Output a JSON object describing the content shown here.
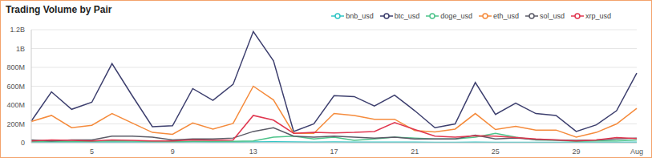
{
  "chart_data": {
    "type": "line",
    "title": "Trading Volume by Pair",
    "categories": [
      null,
      null,
      null,
      "5",
      null,
      null,
      null,
      "9",
      null,
      null,
      null,
      "13",
      null,
      null,
      null,
      "17",
      null,
      null,
      null,
      "21",
      null,
      null,
      null,
      "25",
      null,
      null,
      null,
      "29",
      null,
      null,
      "Aug"
    ],
    "series": [
      {
        "name": "bnb_usd",
        "color": "#2ec4c4",
        "values": [
          5000000,
          6000000,
          5000000,
          6000000,
          7000000,
          6000000,
          5000000,
          5000000,
          8000000,
          7000000,
          6000000,
          8000000,
          10000000,
          8000000,
          7000000,
          8000000,
          7000000,
          6000000,
          7000000,
          6000000,
          5000000,
          5000000,
          6000000,
          5000000,
          5000000,
          5000000,
          4000000,
          4000000,
          4000000,
          5000000,
          6000000
        ]
      },
      {
        "name": "btc_usd",
        "color": "#3d3f6e",
        "values": [
          230000000,
          540000000,
          355000000,
          430000000,
          840000000,
          500000000,
          170000000,
          180000000,
          575000000,
          450000000,
          620000000,
          1180000000,
          870000000,
          120000000,
          200000000,
          500000000,
          490000000,
          390000000,
          505000000,
          340000000,
          160000000,
          200000000,
          640000000,
          300000000,
          420000000,
          310000000,
          290000000,
          120000000,
          190000000,
          340000000,
          740000000
        ]
      },
      {
        "name": "doge_usd",
        "color": "#4cc38a",
        "values": [
          10000000,
          15000000,
          12000000,
          15000000,
          20000000,
          18000000,
          12000000,
          10000000,
          15000000,
          14000000,
          15000000,
          20000000,
          60000000,
          70000000,
          40000000,
          60000000,
          25000000,
          40000000,
          60000000,
          50000000,
          40000000,
          40000000,
          60000000,
          100000000,
          60000000,
          30000000,
          25000000,
          15000000,
          20000000,
          20000000,
          30000000
        ]
      },
      {
        "name": "eth_usd",
        "color": "#f58b3c",
        "values": [
          225000000,
          290000000,
          160000000,
          185000000,
          310000000,
          210000000,
          110000000,
          90000000,
          210000000,
          145000000,
          205000000,
          600000000,
          455000000,
          100000000,
          100000000,
          310000000,
          290000000,
          250000000,
          250000000,
          130000000,
          115000000,
          145000000,
          310000000,
          140000000,
          175000000,
          135000000,
          135000000,
          60000000,
          110000000,
          200000000,
          365000000
        ]
      },
      {
        "name": "sol_usd",
        "color": "#5a5a66",
        "values": [
          30000000,
          20000000,
          30000000,
          30000000,
          70000000,
          70000000,
          60000000,
          30000000,
          40000000,
          40000000,
          50000000,
          120000000,
          160000000,
          70000000,
          60000000,
          70000000,
          60000000,
          50000000,
          60000000,
          40000000,
          40000000,
          40000000,
          80000000,
          40000000,
          50000000,
          35000000,
          30000000,
          25000000,
          30000000,
          40000000,
          50000000
        ]
      },
      {
        "name": "xrp_usd",
        "color": "#e0364f",
        "values": [
          20000000,
          30000000,
          25000000,
          20000000,
          30000000,
          25000000,
          20000000,
          20000000,
          30000000,
          25000000,
          30000000,
          290000000,
          240000000,
          100000000,
          110000000,
          105000000,
          110000000,
          120000000,
          215000000,
          140000000,
          70000000,
          60000000,
          75000000,
          70000000,
          55000000,
          40000000,
          30000000,
          20000000,
          30000000,
          55000000,
          45000000
        ]
      }
    ],
    "ylim": [
      0,
      1200000000
    ],
    "yticks": [
      0,
      {
        "value": 200000000,
        "label": "200M"
      },
      {
        "value": 400000000,
        "label": "400M"
      },
      {
        "value": 600000000,
        "label": "600M"
      },
      {
        "value": 800000000,
        "label": "800M"
      },
      {
        "value": 1000000000,
        "label": "1B"
      },
      {
        "value": 1200000000,
        "label": "1.2B"
      }
    ],
    "grid": true,
    "legend": "top-right"
  }
}
